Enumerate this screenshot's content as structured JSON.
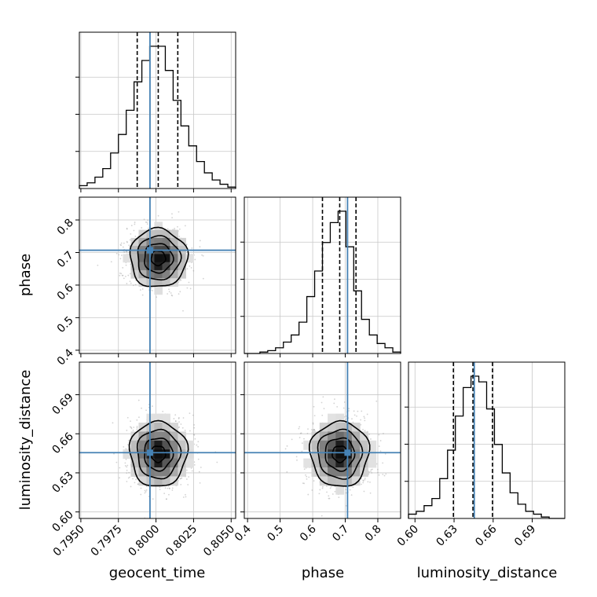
{
  "chart_data": {
    "type": "corner",
    "parameters": [
      "geocent_time",
      "phase",
      "luminosity_distance"
    ],
    "truth": {
      "geocent_time": 0.7996,
      "phase": 0.707,
      "luminosity_distance": 0.6455
    },
    "ranges": {
      "geocent_time": [
        0.7949,
        0.8053
      ],
      "phase": [
        0.39,
        0.87
      ],
      "luminosity_distance": [
        0.595,
        0.715
      ]
    },
    "ticks": {
      "geocent_time": {
        "values": [
          0.795,
          0.7975,
          0.8,
          0.8025,
          0.805
        ],
        "labels": [
          "0.7950",
          "0.7975",
          "0.8000",
          "0.8025",
          "0.8050"
        ]
      },
      "phase": {
        "values": [
          0.4,
          0.5,
          0.6,
          0.7,
          0.8
        ],
        "labels": [
          "0.4",
          "0.5",
          "0.6",
          "0.7",
          "0.8"
        ]
      },
      "luminosity_distance": {
        "values": [
          0.6,
          0.63,
          0.66,
          0.69
        ],
        "labels": [
          "0.60",
          "0.63",
          "0.66",
          "0.69"
        ]
      }
    },
    "histograms": {
      "geocent_time": {
        "bin_edges": [
          0.7949,
          0.79542,
          0.79594,
          0.79646,
          0.79698,
          0.7975,
          0.79802,
          0.79854,
          0.79906,
          0.79958,
          0.8001,
          0.80062,
          0.80114,
          0.80166,
          0.80218,
          0.8027,
          0.80322,
          0.80374,
          0.80426,
          0.80478,
          0.8053
        ],
        "counts": [
          0.02,
          0.04,
          0.08,
          0.14,
          0.25,
          0.38,
          0.55,
          0.75,
          0.9,
          1.0,
          1.0,
          0.83,
          0.62,
          0.44,
          0.3,
          0.19,
          0.11,
          0.06,
          0.03,
          0.01
        ],
        "quantiles": [
          0.79875,
          0.80015,
          0.80145
        ]
      },
      "phase": {
        "bin_edges": [
          0.39,
          0.414,
          0.438,
          0.462,
          0.486,
          0.51,
          0.534,
          0.558,
          0.582,
          0.606,
          0.63,
          0.654,
          0.678,
          0.702,
          0.726,
          0.75,
          0.774,
          0.798,
          0.822,
          0.846,
          0.87
        ],
        "counts": [
          0.0,
          0.0,
          0.01,
          0.02,
          0.04,
          0.08,
          0.13,
          0.22,
          0.4,
          0.58,
          0.78,
          0.92,
          1.0,
          0.75,
          0.44,
          0.24,
          0.13,
          0.07,
          0.04,
          0.01
        ],
        "quantiles": [
          0.63,
          0.683,
          0.733
        ]
      },
      "luminosity_distance": {
        "bin_edges": [
          0.595,
          0.601,
          0.607,
          0.613,
          0.619,
          0.625,
          0.631,
          0.637,
          0.643,
          0.649,
          0.655,
          0.661,
          0.667,
          0.673,
          0.679,
          0.685,
          0.691,
          0.697,
          0.703,
          0.709,
          0.715
        ],
        "counts": [
          0.03,
          0.05,
          0.09,
          0.14,
          0.28,
          0.48,
          0.72,
          0.92,
          1.0,
          0.96,
          0.77,
          0.52,
          0.32,
          0.18,
          0.1,
          0.05,
          0.03,
          0.01,
          0.0,
          0.0
        ],
        "quantiles": [
          0.6295,
          0.6445,
          0.6595
        ]
      }
    },
    "pairs": [
      {
        "x": "geocent_time",
        "y": "phase",
        "center": [
          0.80015,
          0.683
        ],
        "sigma": [
          0.00095,
          0.045
        ]
      },
      {
        "x": "geocent_time",
        "y": "luminosity_distance",
        "center": [
          0.80015,
          0.6445
        ],
        "sigma": [
          0.00095,
          0.0125
        ]
      },
      {
        "x": "phase",
        "y": "luminosity_distance",
        "center": [
          0.683,
          0.6445
        ],
        "sigma": [
          0.045,
          0.0125
        ]
      }
    ],
    "contour_levels_sigma": [
      0.5,
      1.0,
      1.5,
      2.0
    ],
    "colors": {
      "truth": "#4682b4",
      "histogram": "#000000",
      "grid": "#c8c8c8",
      "points": "#9e9e9e"
    },
    "grid": true
  }
}
